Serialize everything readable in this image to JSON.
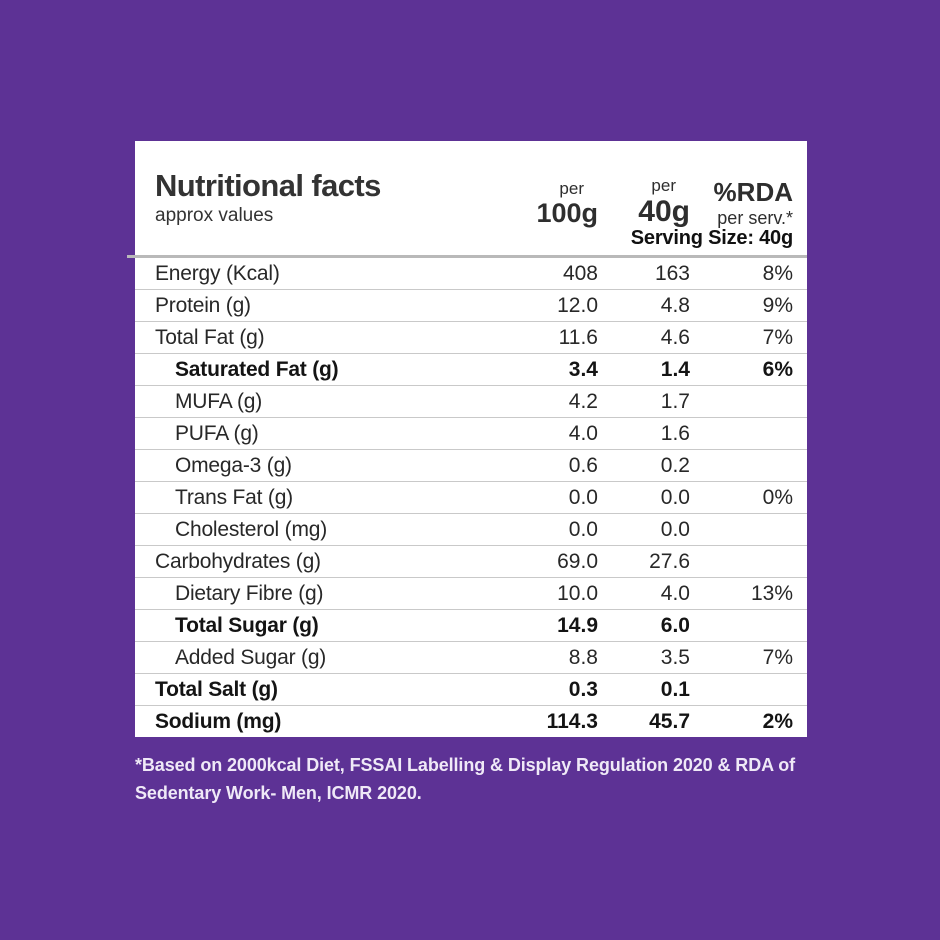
{
  "colors": {
    "background": "#5d3295",
    "card": "#ffffff",
    "text": "#282828",
    "separator": "#b9b9b9",
    "footnote_text": "#efe9f7"
  },
  "card": {
    "title": "Nutritional facts",
    "subtitle": "approx values",
    "columns": [
      {
        "top": "per",
        "bottom": "100g"
      },
      {
        "top": "per",
        "bottom": "40g"
      },
      {
        "top": "%RDA",
        "bottom": "per serv.*"
      }
    ],
    "serving_size": "Serving Size: 40g",
    "rows": [
      {
        "label": "Energy (Kcal)",
        "per100": "408",
        "per40": "163",
        "rda": "8%",
        "bold": false,
        "indent": false
      },
      {
        "label": "Protein (g)",
        "per100": "12.0",
        "per40": "4.8",
        "rda": "9%",
        "bold": false,
        "indent": false
      },
      {
        "label": "Total Fat (g)",
        "per100": "11.6",
        "per40": "4.6",
        "rda": "7%",
        "bold": false,
        "indent": false
      },
      {
        "label": "Saturated Fat (g)",
        "per100": "3.4",
        "per40": "1.4",
        "rda": "6%",
        "bold": true,
        "indent": true
      },
      {
        "label": "MUFA (g)",
        "per100": "4.2",
        "per40": "1.7",
        "rda": "",
        "bold": false,
        "indent": true
      },
      {
        "label": "PUFA (g)",
        "per100": "4.0",
        "per40": "1.6",
        "rda": "",
        "bold": false,
        "indent": true
      },
      {
        "label": "Omega-3 (g)",
        "per100": "0.6",
        "per40": "0.2",
        "rda": "",
        "bold": false,
        "indent": true
      },
      {
        "label": "Trans Fat (g)",
        "per100": "0.0",
        "per40": "0.0",
        "rda": "0%",
        "bold": false,
        "indent": true
      },
      {
        "label": "Cholesterol (mg)",
        "per100": "0.0",
        "per40": "0.0",
        "rda": "",
        "bold": false,
        "indent": true
      },
      {
        "label": "Carbohydrates (g)",
        "per100": "69.0",
        "per40": "27.6",
        "rda": "",
        "bold": false,
        "indent": false
      },
      {
        "label": "Dietary Fibre (g)",
        "per100": "10.0",
        "per40": "4.0",
        "rda": "13%",
        "bold": false,
        "indent": true
      },
      {
        "label": "Total Sugar (g)",
        "per100": "14.9",
        "per40": "6.0",
        "rda": "",
        "bold": true,
        "indent": true
      },
      {
        "label": "Added Sugar (g)",
        "per100": "8.8",
        "per40": "3.5",
        "rda": "7%",
        "bold": false,
        "indent": true
      },
      {
        "label": "Total Salt (g)",
        "per100": "0.3",
        "per40": "0.1",
        "rda": "",
        "bold": true,
        "indent": false
      },
      {
        "label": "Sodium (mg)",
        "per100": "114.3",
        "per40": "45.7",
        "rda": "2%",
        "bold": true,
        "indent": false
      }
    ]
  },
  "footnote": "*Based on 2000kcal Diet, FSSAI Labelling & Display Regulation 2020 & RDA of Sedentary Work- Men, ICMR 2020."
}
